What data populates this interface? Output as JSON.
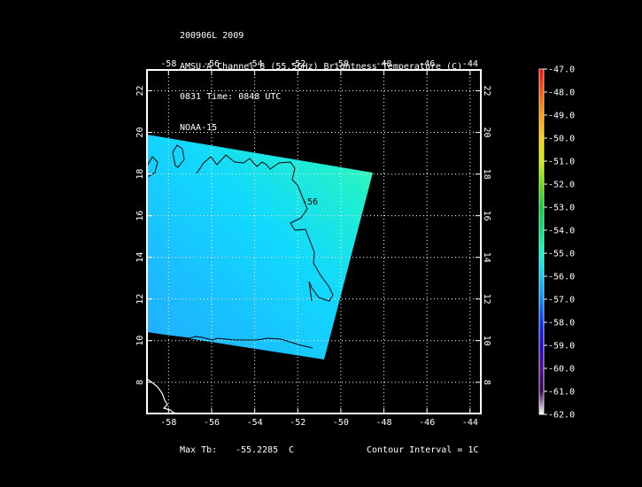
{
  "header": {
    "line1": "200906L 2009",
    "line2": "AMSU-A Channel 8 (55.5GHz) Brightness Temperature (C)",
    "line3": "0831 Time: 0848 UTC",
    "line4": "NOAA-15"
  },
  "map": {
    "lon_range": [
      -59,
      -43.5
    ],
    "lat_range": [
      6.5,
      23
    ],
    "lon_ticks": [
      -58,
      -56,
      -54,
      -52,
      -50,
      -48,
      -46,
      -44
    ],
    "lat_ticks": [
      8,
      10,
      12,
      14,
      16,
      18,
      20,
      22
    ],
    "contour_label": "-56",
    "grid": true
  },
  "colorbar": {
    "labels": [
      "-47.0",
      "-48.0",
      "-49.0",
      "-50.0",
      "-51.0",
      "-52.0",
      "-53.0",
      "-54.0",
      "-55.0",
      "-56.0",
      "-57.0",
      "-58.0",
      "-59.0",
      "-60.0",
      "-61.0",
      "-62.0"
    ],
    "colors": [
      "#ff0000",
      "#ff5500",
      "#ff9900",
      "#ffcc00",
      "#ccee00",
      "#66dd00",
      "#00cc33",
      "#00e07a",
      "#00ffcc",
      "#00ccff",
      "#0088ff",
      "#0033ff",
      "#2200dd",
      "#550099",
      "#330055",
      "#ffffff"
    ]
  },
  "footer": {
    "max_tb_label": "Max Tb:",
    "max_tb_value": "-55.2285",
    "max_tb_unit": "C",
    "contour_interval": "Contour Interval = 1C"
  }
}
